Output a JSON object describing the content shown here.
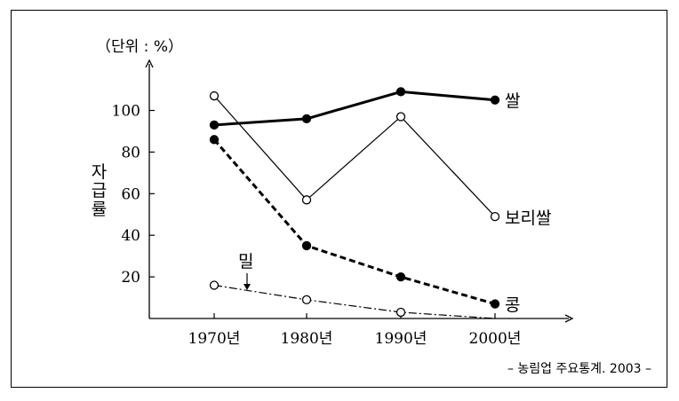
{
  "chart_data": {
    "type": "line",
    "unit_label": "（단위 : %）",
    "ylabel": "자급률",
    "categories": [
      "1970년",
      "1980년",
      "1990년",
      "2000년"
    ],
    "y_ticks": [
      "20",
      "40",
      "60",
      "80",
      "100"
    ],
    "ylim": [
      0,
      120
    ],
    "grid": false,
    "series": [
      {
        "name": "쌀",
        "values": [
          93,
          96,
          109,
          105
        ],
        "line": "solid-thick",
        "marker": "filled"
      },
      {
        "name": "보리쌀",
        "values": [
          107,
          57,
          97,
          49
        ],
        "line": "solid-thin",
        "marker": "open"
      },
      {
        "name": "콩",
        "values": [
          86,
          35,
          20,
          7
        ],
        "line": "dashed-thick",
        "marker": "filled"
      },
      {
        "name": "밀",
        "values": [
          16,
          9,
          3,
          0
        ],
        "line": "dash-dot-thin",
        "marker": "open"
      }
    ],
    "source": "– 농림업 주요통계. 2003 –"
  }
}
